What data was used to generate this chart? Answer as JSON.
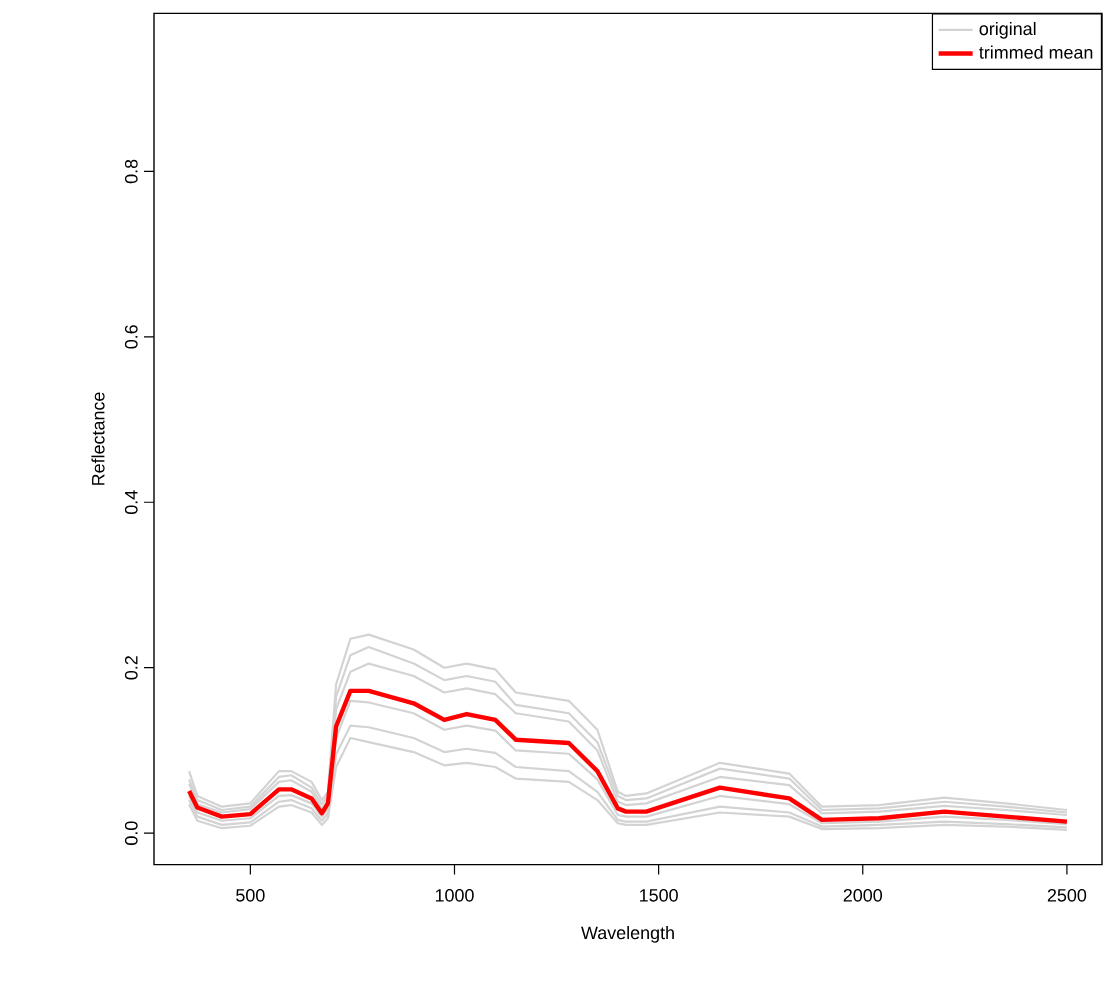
{
  "chart_data": {
    "type": "line",
    "xlabel": "Wavelength",
    "ylabel": "Reflectance",
    "xlim": [
      264,
      2586
    ],
    "ylim": [
      -0.038,
      0.991
    ],
    "xticks": [
      500,
      1000,
      1500,
      2000,
      2500
    ],
    "yticks": [
      {
        "value": 0,
        "label": "0.0"
      },
      0.2,
      0.4,
      0.6,
      0.8
    ],
    "legend": "top right",
    "grid": false,
    "x": [
      350,
      370,
      430,
      500,
      570,
      600,
      650,
      675,
      690,
      710,
      745,
      790,
      900,
      975,
      1030,
      1100,
      1150,
      1280,
      1350,
      1400,
      1420,
      1470,
      1650,
      1820,
      1900,
      2040,
      2200,
      2350,
      2500
    ],
    "series": [
      {
        "name": "original",
        "color": "#d3d3d3",
        "values": [
          0.075,
          0.045,
          0.032,
          0.036,
          0.075,
          0.075,
          0.062,
          0.04,
          0.05,
          0.18,
          0.235,
          0.24,
          0.222,
          0.2,
          0.205,
          0.198,
          0.17,
          0.16,
          0.125,
          0.05,
          0.045,
          0.048,
          0.085,
          0.072,
          0.032,
          0.034,
          0.043,
          0.036,
          0.028
        ]
      },
      {
        "color": "#d3d3d3",
        "values": [
          0.065,
          0.04,
          0.028,
          0.032,
          0.068,
          0.07,
          0.055,
          0.035,
          0.045,
          0.165,
          0.215,
          0.225,
          0.205,
          0.185,
          0.19,
          0.183,
          0.155,
          0.145,
          0.11,
          0.045,
          0.04,
          0.042,
          0.078,
          0.066,
          0.028,
          0.03,
          0.038,
          0.032,
          0.025
        ]
      },
      {
        "color": "#d3d3d3",
        "values": [
          0.06,
          0.035,
          0.025,
          0.029,
          0.062,
          0.064,
          0.05,
          0.03,
          0.04,
          0.15,
          0.195,
          0.205,
          0.19,
          0.17,
          0.175,
          0.168,
          0.145,
          0.135,
          0.1,
          0.038,
          0.034,
          0.036,
          0.068,
          0.058,
          0.024,
          0.026,
          0.033,
          0.028,
          0.022
        ]
      },
      {
        "color": "#d3d3d3",
        "values": [
          0.045,
          0.025,
          0.015,
          0.018,
          0.045,
          0.046,
          0.036,
          0.02,
          0.03,
          0.115,
          0.16,
          0.158,
          0.145,
          0.125,
          0.13,
          0.124,
          0.1,
          0.096,
          0.065,
          0.022,
          0.02,
          0.02,
          0.045,
          0.035,
          0.012,
          0.014,
          0.02,
          0.016,
          0.011
        ]
      },
      {
        "color": "#d3d3d3",
        "values": [
          0.04,
          0.02,
          0.01,
          0.013,
          0.038,
          0.04,
          0.03,
          0.015,
          0.024,
          0.095,
          0.13,
          0.128,
          0.115,
          0.098,
          0.102,
          0.097,
          0.08,
          0.075,
          0.05,
          0.016,
          0.014,
          0.014,
          0.032,
          0.025,
          0.008,
          0.01,
          0.014,
          0.011,
          0.007
        ]
      },
      {
        "color": "#d3d3d3",
        "values": [
          0.035,
          0.015,
          0.006,
          0.009,
          0.032,
          0.034,
          0.025,
          0.01,
          0.018,
          0.08,
          0.115,
          0.11,
          0.098,
          0.082,
          0.085,
          0.08,
          0.066,
          0.062,
          0.04,
          0.012,
          0.01,
          0.01,
          0.025,
          0.02,
          0.005,
          0.006,
          0.01,
          0.008,
          0.004
        ]
      },
      {
        "name": "trimmed mean",
        "color": "#ff0000",
        "values": [
          0.051,
          0.031,
          0.02,
          0.023,
          0.053,
          0.053,
          0.042,
          0.024,
          0.036,
          0.129,
          0.172,
          0.172,
          0.157,
          0.137,
          0.144,
          0.137,
          0.113,
          0.109,
          0.075,
          0.03,
          0.026,
          0.026,
          0.055,
          0.042,
          0.016,
          0.018,
          0.026,
          0.02,
          0.014
        ]
      }
    ]
  }
}
